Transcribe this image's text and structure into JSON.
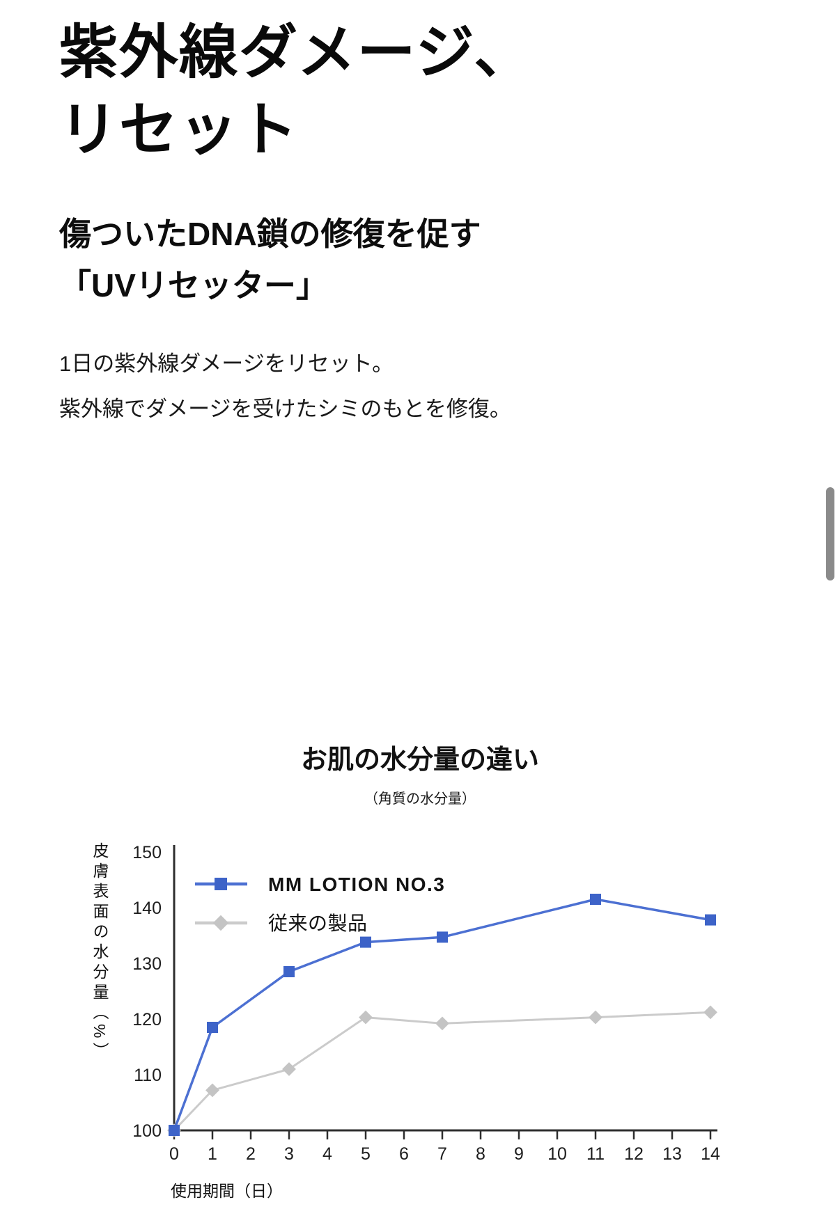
{
  "heading": {
    "line1": "紫外線ダメージ、",
    "line2": "リセット"
  },
  "subheading": {
    "line1": "傷ついたDNA鎖の修復を促す",
    "line2": "「UVリセッター」"
  },
  "body": {
    "line1": "1日の紫外線ダメージをリセット。",
    "line2": "紫外線でダメージを受けたシミのもとを修復。"
  },
  "scrollbar": {
    "thumb_color": "#8a8a8a"
  },
  "chart_data": {
    "type": "line",
    "title": "お肌の水分量の違い",
    "subtitle": "（角質の水分量）",
    "xlabel": "使用期間（日）",
    "ylabel": "皮膚表面の水分量（%）",
    "xlim": [
      0,
      14
    ],
    "ylim": [
      100,
      150
    ],
    "grid": false,
    "legend_position": "top-left-inside",
    "xticks": [
      0,
      1,
      2,
      3,
      4,
      5,
      6,
      7,
      8,
      9,
      10,
      11,
      12,
      13,
      14
    ],
    "yticks": [
      100,
      110,
      120,
      130,
      140,
      150
    ],
    "x": [
      0,
      1,
      3,
      5,
      7,
      11,
      14
    ],
    "series": [
      {
        "name": "MM LOTION NO.3",
        "marker": "square",
        "marker_color": "#3d63c8",
        "line_color": "#4c70d2",
        "values": [
          100,
          118.5,
          128.5,
          133.8,
          134.7,
          141.5,
          137.8
        ]
      },
      {
        "name": "従来の製品",
        "marker": "diamond",
        "marker_color": "#c4c4c4",
        "line_color": "#cbcbcb",
        "values": [
          100,
          107.2,
          111,
          120.3,
          119.2,
          120.3,
          121.2
        ]
      }
    ],
    "axis_color": "#2e2e2e",
    "tick_label_color": "#1e1e1e"
  }
}
